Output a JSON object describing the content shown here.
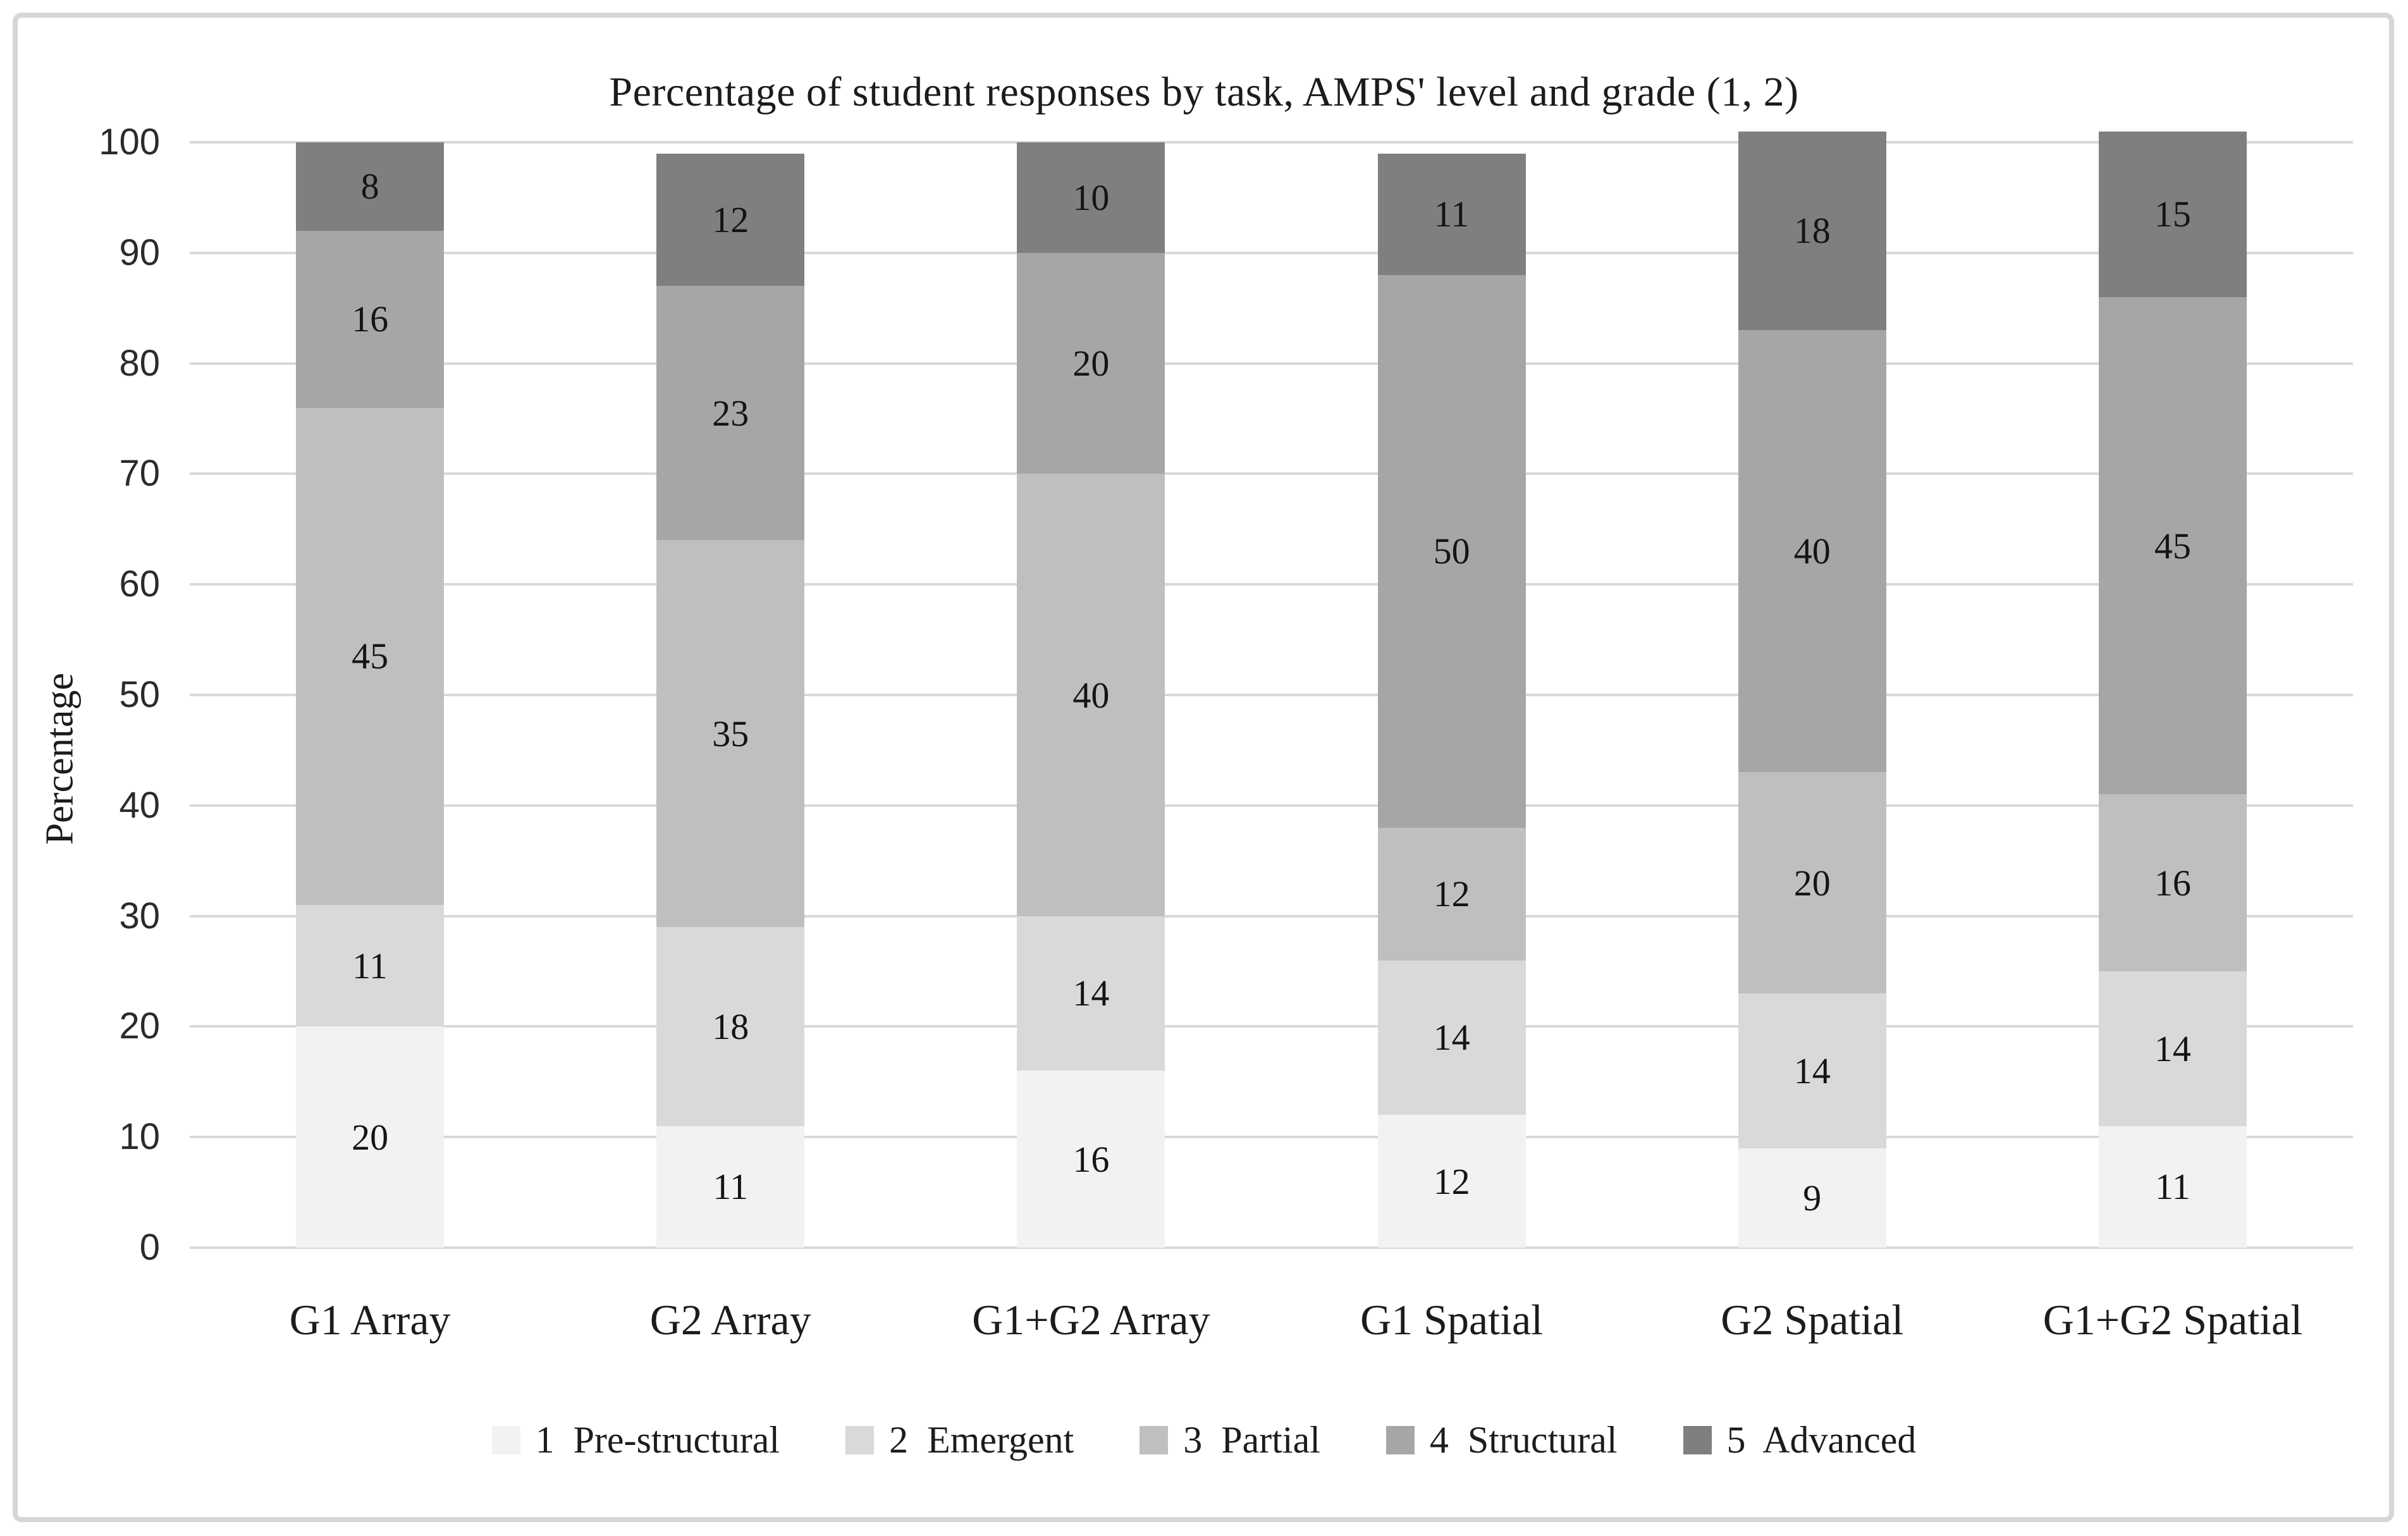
{
  "chart_data": {
    "type": "bar",
    "stacked": true,
    "title": "Percentage of student responses by task, AMPS' level and grade (1, 2)",
    "xlabel": "",
    "ylabel": "Percentage",
    "ylim": [
      0,
      100
    ],
    "yticks": [
      0,
      10,
      20,
      30,
      40,
      50,
      60,
      70,
      80,
      90,
      100
    ],
    "grid": true,
    "gridline_color": "#d9d9d9",
    "legend_position": "bottom",
    "bar_labels": true,
    "categories": [
      "G1 Array",
      "G2 Array",
      "G1+G2 Array",
      "G1 Spatial",
      "G2 Spatial",
      "G1+G2 Spatial"
    ],
    "series": [
      {
        "name": "1  Pre-structural",
        "color": "#f2f2f2",
        "values": [
          20,
          11,
          16,
          12,
          9,
          11
        ]
      },
      {
        "name": "2  Emergent",
        "color": "#d9d9d9",
        "values": [
          11,
          18,
          14,
          14,
          14,
          14
        ]
      },
      {
        "name": "3  Partial",
        "color": "#bfbfbf",
        "values": [
          45,
          35,
          40,
          12,
          20,
          16
        ]
      },
      {
        "name": "4  Structural",
        "color": "#a6a6a6",
        "values": [
          16,
          23,
          20,
          50,
          40,
          45
        ]
      },
      {
        "name": "5  Advanced",
        "color": "#7f7f7f",
        "values": [
          8,
          12,
          10,
          11,
          18,
          15
        ]
      }
    ]
  },
  "figure": {
    "border_color": "#d6d6d6",
    "background": "#ffffff",
    "text_color": "#1a1a1a"
  }
}
